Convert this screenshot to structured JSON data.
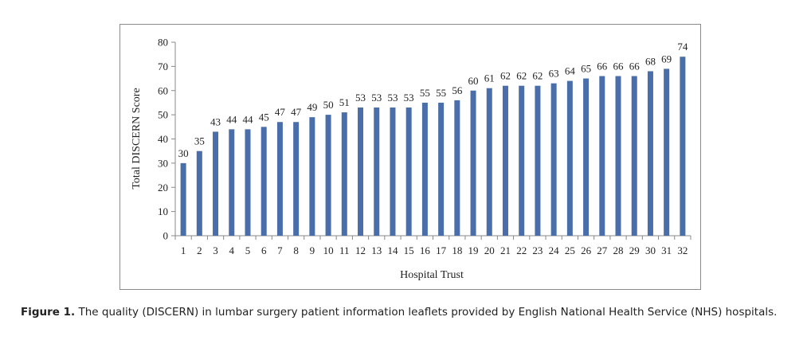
{
  "chart_data": {
    "type": "bar",
    "categories": [
      "1",
      "2",
      "3",
      "4",
      "5",
      "6",
      "7",
      "8",
      "9",
      "10",
      "11",
      "12",
      "13",
      "14",
      "15",
      "16",
      "17",
      "18",
      "19",
      "20",
      "21",
      "22",
      "23",
      "24",
      "25",
      "26",
      "27",
      "28",
      "29",
      "30",
      "31",
      "32"
    ],
    "values": [
      30,
      35,
      43,
      44,
      44,
      45,
      47,
      47,
      49,
      50,
      51,
      53,
      53,
      53,
      53,
      55,
      55,
      56,
      60,
      61,
      62,
      62,
      62,
      63,
      64,
      65,
      66,
      66,
      66,
      68,
      69,
      74
    ],
    "title": "",
    "xlabel": "Hospital Trust",
    "ylabel": "Total DISCERN Score",
    "ylim": [
      0,
      80
    ],
    "yticks": [
      0,
      10,
      20,
      30,
      40,
      50,
      60,
      70,
      80
    ],
    "grid": false,
    "bar_color": "#4a6ea9"
  },
  "caption": {
    "label": "Figure 1.",
    "text": "The quality (DISCERN) in lumbar surgery patient information leaflets provided by English National Health Service (NHS) hospitals."
  }
}
